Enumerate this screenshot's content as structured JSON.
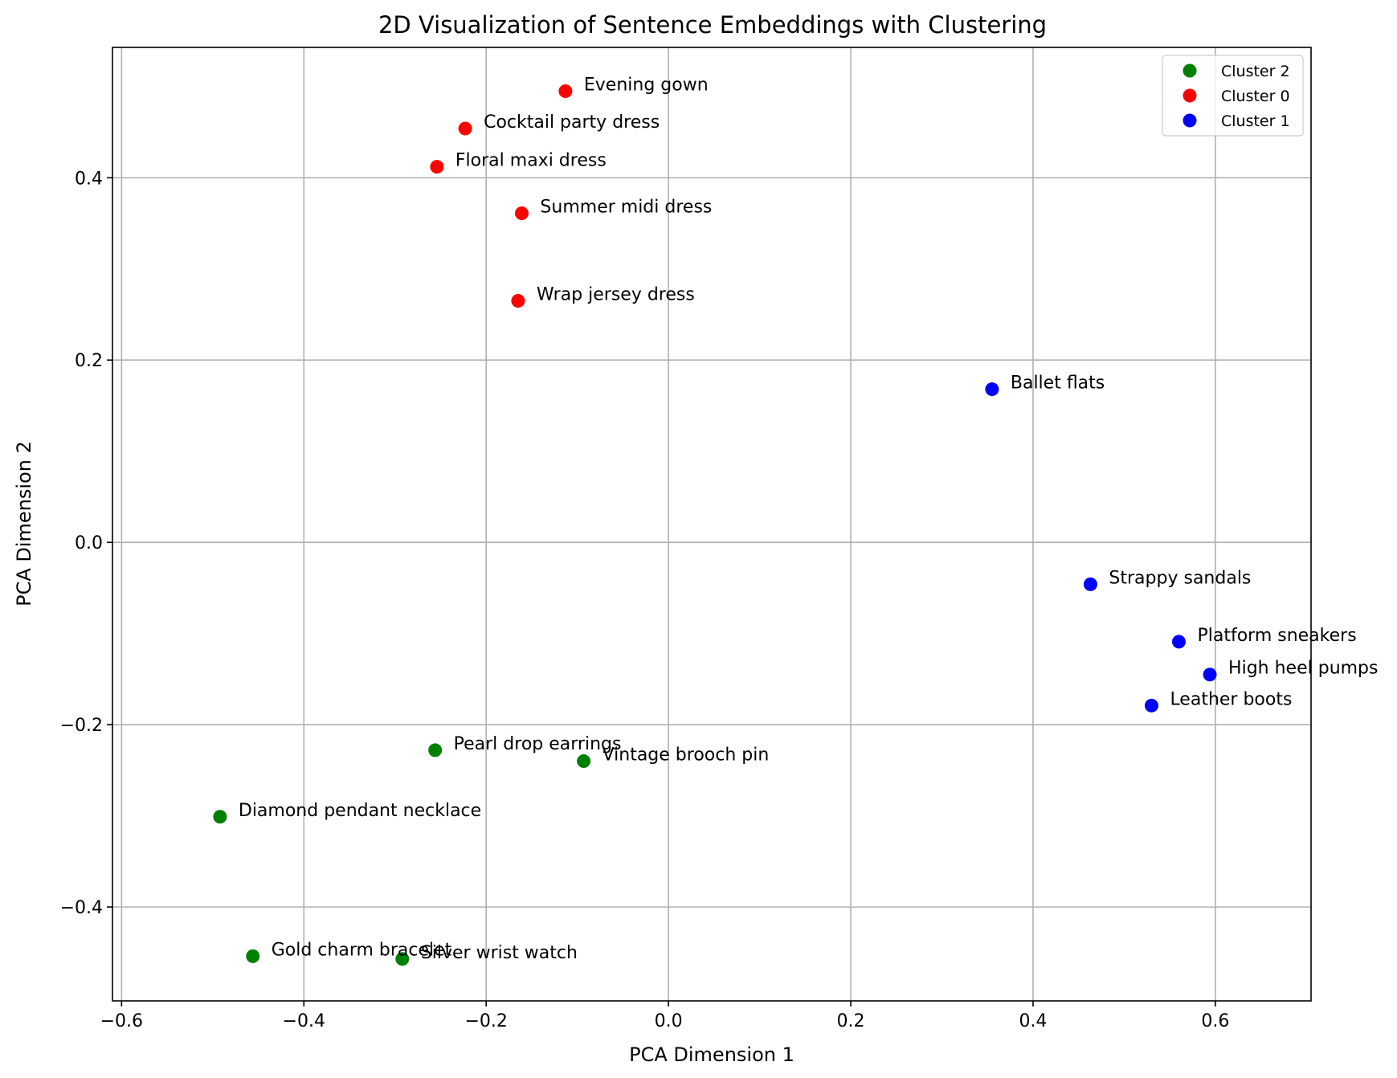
{
  "chart_data": {
    "type": "scatter",
    "title": "2D Visualization of Sentence Embeddings with Clustering",
    "xlabel": "PCA Dimension 1",
    "ylabel": "PCA Dimension 2",
    "xlim": [
      -0.61,
      0.705
    ],
    "ylim": [
      -0.503,
      0.543
    ],
    "x_ticks": [
      -0.6,
      -0.4,
      -0.2,
      0.0,
      0.2,
      0.4,
      0.6
    ],
    "x_tick_labels": [
      "−0.6",
      "−0.4",
      "−0.2",
      "0.0",
      "0.2",
      "0.4",
      "0.6"
    ],
    "y_ticks": [
      -0.4,
      -0.2,
      0.0,
      0.2,
      0.4
    ],
    "y_tick_labels": [
      "−0.4",
      "−0.2",
      "0.0",
      "0.2",
      "0.4"
    ],
    "grid": true,
    "legend_position": "top-right",
    "series": [
      {
        "name": "Cluster 2",
        "color": "#008000",
        "points": [
          {
            "x": -0.256,
            "y": -0.228,
            "label": "Pearl drop earrings"
          },
          {
            "x": -0.093,
            "y": -0.24,
            "label": "Vintage brooch pin"
          },
          {
            "x": -0.492,
            "y": -0.301,
            "label": "Diamond pendant necklace"
          },
          {
            "x": -0.456,
            "y": -0.454,
            "label": "Gold charm bracelet"
          },
          {
            "x": -0.292,
            "y": -0.457,
            "label": "Silver wrist watch"
          }
        ]
      },
      {
        "name": "Cluster 0",
        "color": "#ff0000",
        "points": [
          {
            "x": -0.113,
            "y": 0.495,
            "label": "Evening gown"
          },
          {
            "x": -0.223,
            "y": 0.454,
            "label": "Cocktail party dress"
          },
          {
            "x": -0.254,
            "y": 0.412,
            "label": "Floral maxi dress"
          },
          {
            "x": -0.161,
            "y": 0.361,
            "label": "Summer midi dress"
          },
          {
            "x": -0.165,
            "y": 0.265,
            "label": "Wrap jersey dress"
          }
        ]
      },
      {
        "name": "Cluster 1",
        "color": "#0000ff",
        "points": [
          {
            "x": 0.355,
            "y": 0.168,
            "label": "Ballet flats"
          },
          {
            "x": 0.463,
            "y": -0.046,
            "label": "Strappy sandals"
          },
          {
            "x": 0.56,
            "y": -0.109,
            "label": "Platform sneakers"
          },
          {
            "x": 0.594,
            "y": -0.145,
            "label": "High heel pumps"
          },
          {
            "x": 0.53,
            "y": -0.179,
            "label": "Leather boots"
          }
        ]
      }
    ]
  }
}
